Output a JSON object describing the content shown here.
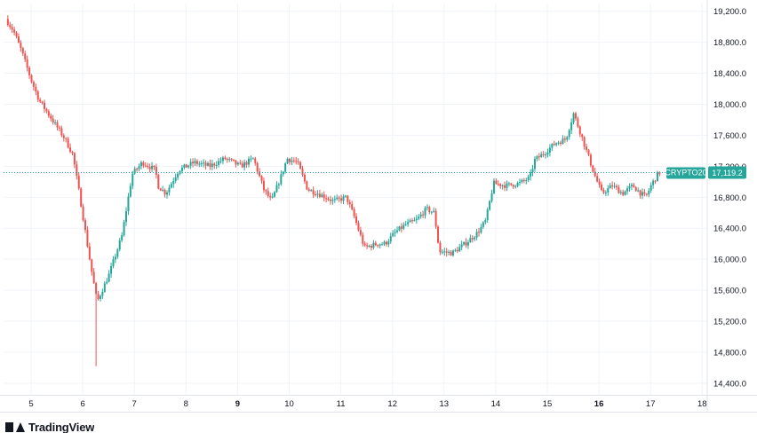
{
  "chart_data": {
    "type": "candlestick",
    "symbol": "CRYPTO20",
    "last_price": 17119.2,
    "last_price_label": "17,119.2",
    "y_range": [
      14250,
      19300
    ],
    "x_range": [
      4.5,
      18.3
    ],
    "y_ticks": [
      {
        "value": 19200,
        "label": "19,200.0"
      },
      {
        "value": 18800,
        "label": "18,800.0"
      },
      {
        "value": 18400,
        "label": "18,400.0"
      },
      {
        "value": 18000,
        "label": "18,000.0"
      },
      {
        "value": 17600,
        "label": "17,600.0"
      },
      {
        "value": 17200,
        "label": "17,200.0"
      },
      {
        "value": 16800,
        "label": "16,800.0"
      },
      {
        "value": 16400,
        "label": "16,400.0"
      },
      {
        "value": 16000,
        "label": "16,000.0"
      },
      {
        "value": 15600,
        "label": "15,600.0"
      },
      {
        "value": 15200,
        "label": "15,200.0"
      },
      {
        "value": 14800,
        "label": "14,800.0"
      },
      {
        "value": 14400,
        "label": "14,400.0"
      }
    ],
    "x_ticks": [
      {
        "value": 5,
        "label": "5",
        "bold": false
      },
      {
        "value": 6,
        "label": "6",
        "bold": false
      },
      {
        "value": 7,
        "label": "7",
        "bold": false
      },
      {
        "value": 8,
        "label": "8",
        "bold": false
      },
      {
        "value": 9,
        "label": "9",
        "bold": true
      },
      {
        "value": 10,
        "label": "10",
        "bold": false
      },
      {
        "value": 11,
        "label": "11",
        "bold": false
      },
      {
        "value": 12,
        "label": "12",
        "bold": false
      },
      {
        "value": 13,
        "label": "13",
        "bold": false
      },
      {
        "value": 14,
        "label": "14",
        "bold": false
      },
      {
        "value": 15,
        "label": "15",
        "bold": false
      },
      {
        "value": 16,
        "label": "16",
        "bold": true
      },
      {
        "value": 17,
        "label": "17",
        "bold": false
      },
      {
        "value": 18,
        "label": "18",
        "bold": false
      }
    ],
    "path_points": [
      [
        4.55,
        19100
      ],
      [
        4.7,
        18950
      ],
      [
        4.85,
        18700
      ],
      [
        5.05,
        18300
      ],
      [
        5.2,
        18050
      ],
      [
        5.45,
        17800
      ],
      [
        5.7,
        17550
      ],
      [
        5.85,
        17350
      ],
      [
        6.0,
        16750
      ],
      [
        6.2,
        15900
      ],
      [
        6.32,
        15450
      ],
      [
        6.55,
        15800
      ],
      [
        6.8,
        16300
      ],
      [
        7.0,
        17100
      ],
      [
        7.2,
        17250
      ],
      [
        7.45,
        17150
      ],
      [
        7.5,
        16950
      ],
      [
        7.65,
        16850
      ],
      [
        7.9,
        17150
      ],
      [
        8.2,
        17250
      ],
      [
        8.5,
        17200
      ],
      [
        8.8,
        17300
      ],
      [
        9.1,
        17200
      ],
      [
        9.35,
        17300
      ],
      [
        9.55,
        16900
      ],
      [
        9.7,
        16750
      ],
      [
        9.9,
        17100
      ],
      [
        10.0,
        17300
      ],
      [
        10.2,
        17250
      ],
      [
        10.4,
        16900
      ],
      [
        10.6,
        16850
      ],
      [
        10.9,
        16750
      ],
      [
        11.15,
        16800
      ],
      [
        11.3,
        16550
      ],
      [
        11.5,
        16150
      ],
      [
        11.75,
        16200
      ],
      [
        11.9,
        16200
      ],
      [
        12.1,
        16350
      ],
      [
        12.3,
        16450
      ],
      [
        12.5,
        16500
      ],
      [
        12.7,
        16650
      ],
      [
        12.85,
        16600
      ],
      [
        12.95,
        16100
      ],
      [
        13.2,
        16080
      ],
      [
        13.45,
        16200
      ],
      [
        13.7,
        16350
      ],
      [
        13.85,
        16500
      ],
      [
        14.0,
        16980
      ],
      [
        14.25,
        16950
      ],
      [
        14.5,
        16980
      ],
      [
        14.7,
        17050
      ],
      [
        14.8,
        17280
      ],
      [
        15.0,
        17380
      ],
      [
        15.2,
        17500
      ],
      [
        15.4,
        17550
      ],
      [
        15.55,
        17880
      ],
      [
        15.7,
        17600
      ],
      [
        15.85,
        17300
      ],
      [
        15.95,
        17100
      ],
      [
        16.1,
        16850
      ],
      [
        16.3,
        16950
      ],
      [
        16.5,
        16850
      ],
      [
        16.7,
        16950
      ],
      [
        16.85,
        16850
      ],
      [
        16.95,
        16800
      ],
      [
        17.05,
        16950
      ],
      [
        17.2,
        17119
      ]
    ]
  },
  "branding": {
    "name": "TradingView"
  }
}
